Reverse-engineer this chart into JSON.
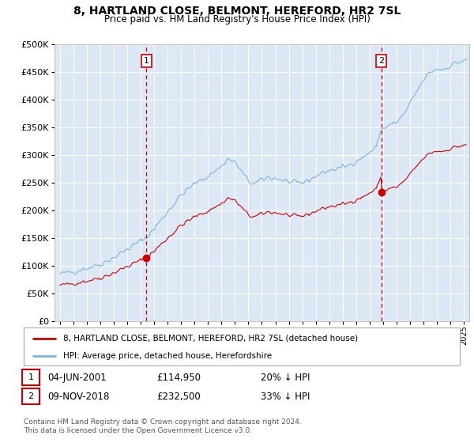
{
  "title": "8, HARTLAND CLOSE, BELMONT, HEREFORD, HR2 7SL",
  "subtitle": "Price paid vs. HM Land Registry's House Price Index (HPI)",
  "legend_line1": "8, HARTLAND CLOSE, BELMONT, HEREFORD, HR2 7SL (detached house)",
  "legend_line2": "HPI: Average price, detached house, Herefordshire",
  "annotation1_date": "04-JUN-2001",
  "annotation1_price": "£114,950",
  "annotation1_hpi": "20% ↓ HPI",
  "annotation2_date": "09-NOV-2018",
  "annotation2_price": "£232,500",
  "annotation2_hpi": "33% ↓ HPI",
  "footnote": "Contains HM Land Registry data © Crown copyright and database right 2024.\nThis data is licensed under the Open Government Licence v3.0.",
  "hpi_color": "#7ab8d9",
  "price_color": "#cc0000",
  "vline_color": "#cc0000",
  "bg_color": "#dce8f5",
  "grid_color": "#ffffff",
  "ylim": [
    0,
    500000
  ],
  "yticks": [
    0,
    50000,
    100000,
    150000,
    200000,
    250000,
    300000,
    350000,
    400000,
    450000,
    500000
  ],
  "sale1_year": 2001.42,
  "sale1_value": 114950,
  "sale2_year": 2018.86,
  "sale2_value": 232500
}
